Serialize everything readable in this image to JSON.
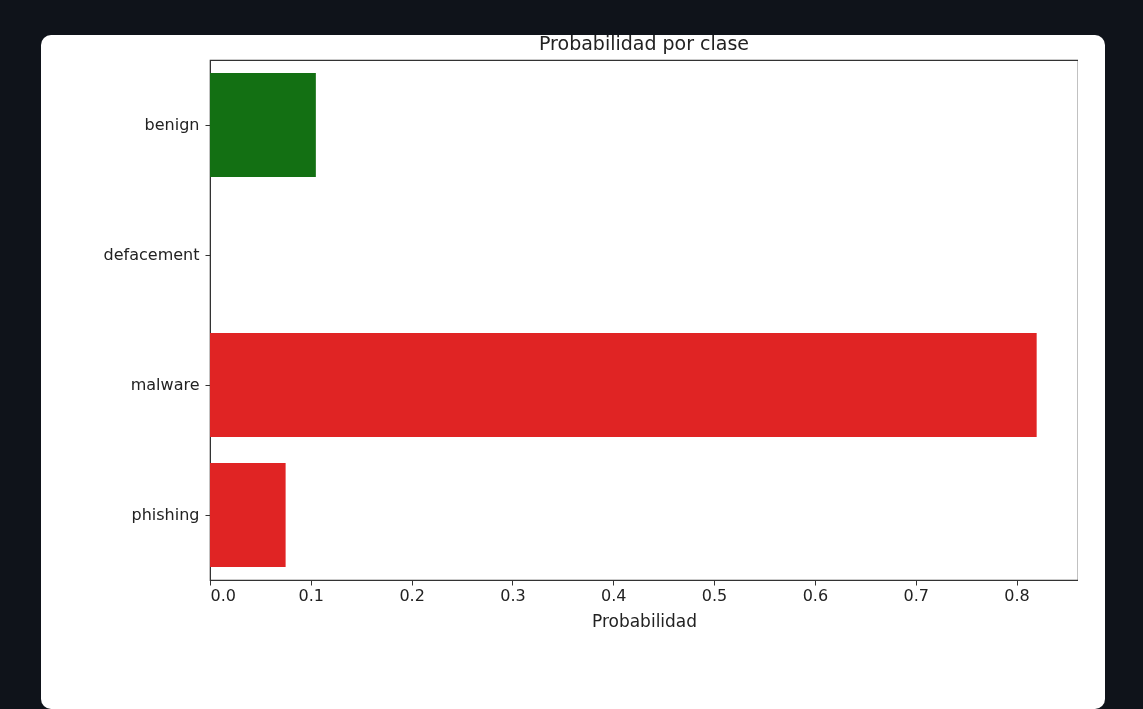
{
  "chart_data": {
    "type": "bar",
    "orientation": "horizontal",
    "title": "Probabilidad por clase",
    "xlabel": "Probabilidad",
    "categories": [
      "benign",
      "defacement",
      "malware",
      "phishing"
    ],
    "values": [
      0.105,
      0,
      0.82,
      0.075
    ],
    "colors": [
      "#137013",
      "#e02424",
      "#e02424",
      "#e02424"
    ],
    "xlim": [
      0,
      0.861
    ],
    "xticks": [
      {
        "value": 0,
        "label": "0.0"
      },
      0.1,
      0.2,
      0.3,
      0.4,
      0.5,
      0.6,
      0.7,
      0.8
    ],
    "grid": false
  }
}
